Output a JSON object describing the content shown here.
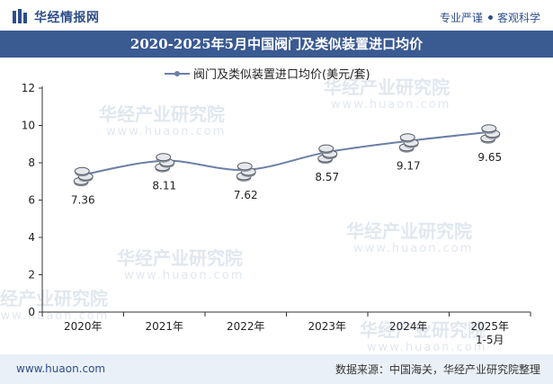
{
  "header": {
    "brand": "华经情报网",
    "tagline_left": "专业严谨",
    "tagline_right": "客观科学"
  },
  "title": "2020-2025年5月中国阀门及类似装置进口均价",
  "watermark": {
    "brand": "华经产业研究院",
    "url": "www.huaon.com"
  },
  "chart_data": {
    "type": "line",
    "categories": [
      "2020年",
      "2021年",
      "2022年",
      "2023年",
      "2024年",
      "2025年\n1-5月"
    ],
    "series": [
      {
        "name": "阀门及类似装置进口均价(美元/套)",
        "values": [
          7.36,
          8.11,
          7.62,
          8.57,
          9.17,
          9.65
        ]
      }
    ],
    "ylim": [
      0,
      12
    ],
    "yticks": [
      0,
      2,
      4,
      6,
      8,
      10,
      12
    ],
    "data_labels": [
      "7.36",
      "8.11",
      "7.62",
      "8.57",
      "9.17",
      "9.65"
    ],
    "line_color": "#6b7fa6",
    "legend_position": "top-center",
    "grid": false,
    "smooth": true
  },
  "footer": {
    "url": "www.huaon.com",
    "source": "数据来源：中国海关，华经产业研究院整理"
  }
}
